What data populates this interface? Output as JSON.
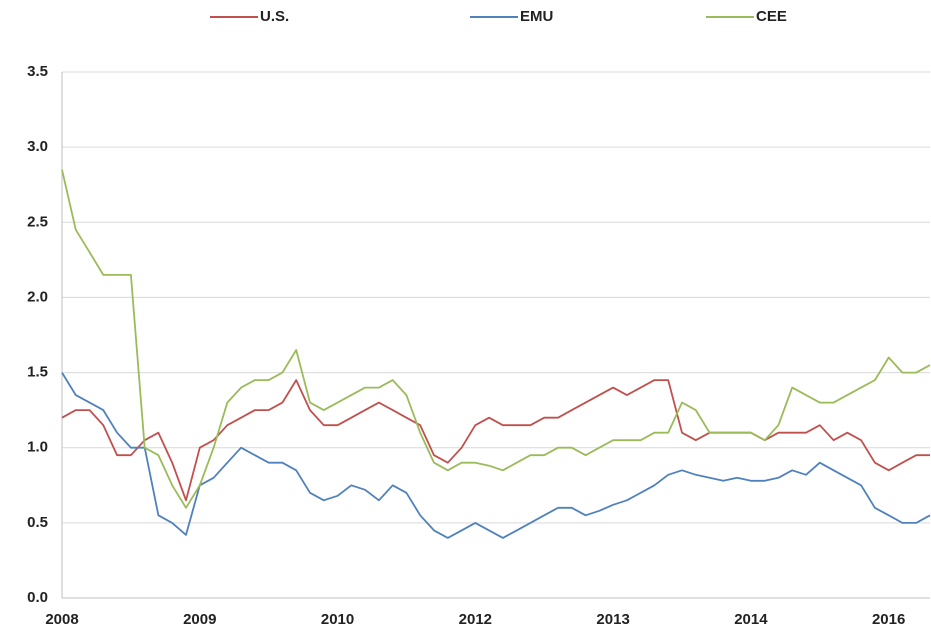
{
  "chart_data": {
    "type": "line",
    "categories": [
      "2008",
      null,
      null,
      null,
      null,
      null,
      null,
      null,
      null,
      null,
      "2009",
      null,
      null,
      null,
      null,
      null,
      null,
      null,
      null,
      null,
      "2010",
      null,
      null,
      null,
      null,
      null,
      null,
      null,
      null,
      null,
      "2012",
      null,
      null,
      null,
      null,
      null,
      null,
      null,
      null,
      null,
      "2013",
      null,
      null,
      null,
      null,
      null,
      null,
      null,
      null,
      null,
      "2014",
      null,
      null,
      null,
      null,
      null,
      null,
      null,
      null,
      null,
      "2016",
      null,
      null,
      null
    ],
    "series": [
      {
        "name": "U.S.",
        "color": "#c0504d",
        "values": [
          1.2,
          1.25,
          1.25,
          1.15,
          0.95,
          0.95,
          1.05,
          1.1,
          0.9,
          0.65,
          1.0,
          1.05,
          1.15,
          1.2,
          1.25,
          1.25,
          1.3,
          1.45,
          1.25,
          1.15,
          1.15,
          1.2,
          1.25,
          1.3,
          1.25,
          1.2,
          1.15,
          0.95,
          0.9,
          1.0,
          1.15,
          1.2,
          1.15,
          1.15,
          1.15,
          1.2,
          1.2,
          1.25,
          1.3,
          1.35,
          1.4,
          1.35,
          1.4,
          1.45,
          1.45,
          1.1,
          1.05,
          1.1,
          1.1,
          1.1,
          1.1,
          1.05,
          1.1,
          1.1,
          1.1,
          1.15,
          1.05,
          1.1,
          1.05,
          0.9,
          0.85,
          0.9,
          0.95,
          0.95
        ]
      },
      {
        "name": "EMU",
        "color": "#4f81bd",
        "values": [
          1.5,
          1.35,
          1.3,
          1.25,
          1.1,
          1.0,
          1.0,
          0.55,
          0.5,
          0.42,
          0.75,
          0.8,
          0.9,
          1.0,
          0.95,
          0.9,
          0.9,
          0.85,
          0.7,
          0.65,
          0.68,
          0.75,
          0.72,
          0.65,
          0.75,
          0.7,
          0.55,
          0.45,
          0.4,
          0.45,
          0.5,
          0.45,
          0.4,
          0.45,
          0.5,
          0.55,
          0.6,
          0.6,
          0.55,
          0.58,
          0.62,
          0.65,
          0.7,
          0.75,
          0.82,
          0.85,
          0.82,
          0.8,
          0.78,
          0.8,
          0.78,
          0.78,
          0.8,
          0.85,
          0.82,
          0.9,
          0.85,
          0.8,
          0.75,
          0.6,
          0.55,
          0.5,
          0.5,
          0.55
        ]
      },
      {
        "name": "CEE",
        "color": "#9bbb59",
        "values": [
          2.85,
          2.45,
          2.3,
          2.15,
          2.15,
          2.15,
          1.0,
          0.95,
          0.75,
          0.6,
          0.75,
          1.0,
          1.3,
          1.4,
          1.45,
          1.45,
          1.5,
          1.65,
          1.3,
          1.25,
          1.3,
          1.35,
          1.4,
          1.4,
          1.45,
          1.35,
          1.1,
          0.9,
          0.85,
          0.9,
          0.9,
          0.88,
          0.85,
          0.9,
          0.95,
          0.95,
          1.0,
          1.0,
          0.95,
          1.0,
          1.05,
          1.05,
          1.05,
          1.1,
          1.1,
          1.3,
          1.25,
          1.1,
          1.1,
          1.1,
          1.1,
          1.05,
          1.15,
          1.4,
          1.35,
          1.3,
          1.3,
          1.35,
          1.4,
          1.45,
          1.6,
          1.5,
          1.5,
          1.55
        ]
      }
    ],
    "ylim": [
      0,
      3.5
    ],
    "yticks": [
      {
        "value": 0,
        "label": "0.0"
      },
      0.5,
      {
        "value": 1,
        "label": "1.0"
      },
      1.5,
      {
        "value": 2,
        "label": "2.0"
      },
      2.5,
      {
        "value": 3,
        "label": "3.0"
      },
      3.5
    ],
    "grid": true,
    "legend": "top"
  }
}
